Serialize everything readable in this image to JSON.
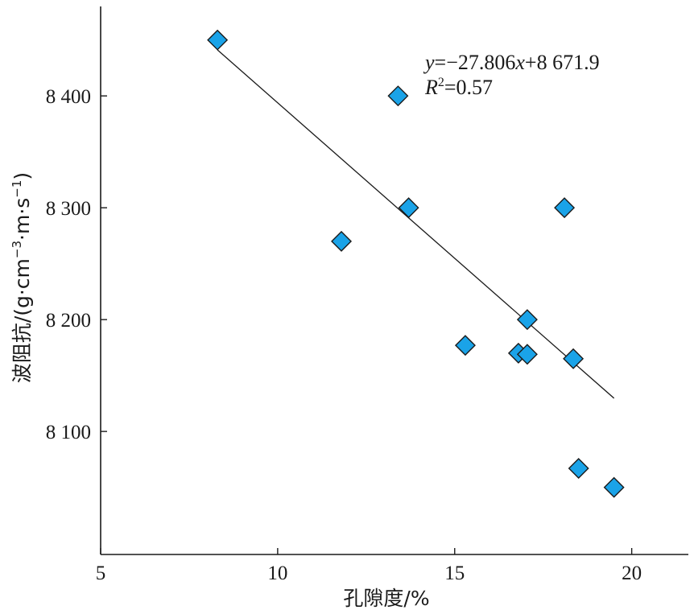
{
  "chart_data": {
    "type": "scatter",
    "xlabel": "孔隙度/%",
    "ylabel_main": "波阻抗/(g·cm",
    "ylabel_units": [
      {
        "text": "波阻抗/(g·cm",
        "sup": false
      },
      {
        "text": "−3",
        "sup": true
      },
      {
        "text": "·m·s",
        "sup": false
      },
      {
        "text": "−1",
        "sup": true
      },
      {
        "text": ")",
        "sup": false
      }
    ],
    "xlim": [
      5,
      21.6
    ],
    "ylim": [
      7990,
      8480
    ],
    "x_ticks": [
      5,
      10,
      15,
      20
    ],
    "x_tick_labels": [
      "5",
      "10",
      "15",
      "20"
    ],
    "y_ticks": [
      8100,
      8200,
      8300,
      8400
    ],
    "y_tick_labels": [
      "8 100",
      "8 200",
      "8 300",
      "8 400"
    ],
    "marker": "diamond",
    "marker_color": "#1aa3e8",
    "points": [
      {
        "x": 8.3,
        "y": 8450
      },
      {
        "x": 13.4,
        "y": 8400
      },
      {
        "x": 13.7,
        "y": 8300
      },
      {
        "x": 11.8,
        "y": 8270
      },
      {
        "x": 18.1,
        "y": 8300
      },
      {
        "x": 17.05,
        "y": 8200
      },
      {
        "x": 15.3,
        "y": 8177
      },
      {
        "x": 16.8,
        "y": 8170
      },
      {
        "x": 17.05,
        "y": 8169
      },
      {
        "x": 18.35,
        "y": 8165
      },
      {
        "x": 18.5,
        "y": 8067
      },
      {
        "x": 19.5,
        "y": 8050
      }
    ],
    "trendline": {
      "x_range": [
        8.3,
        19.5
      ],
      "slope": -27.806,
      "intercept": 8671.9
    },
    "equation": {
      "y_var": "y",
      "eq_rest": "=−27.806",
      "x_var": "x",
      "eq_tail": "+8 671.9",
      "r_var": "R",
      "r_sup": "2",
      "r_value": "=0.57"
    }
  }
}
